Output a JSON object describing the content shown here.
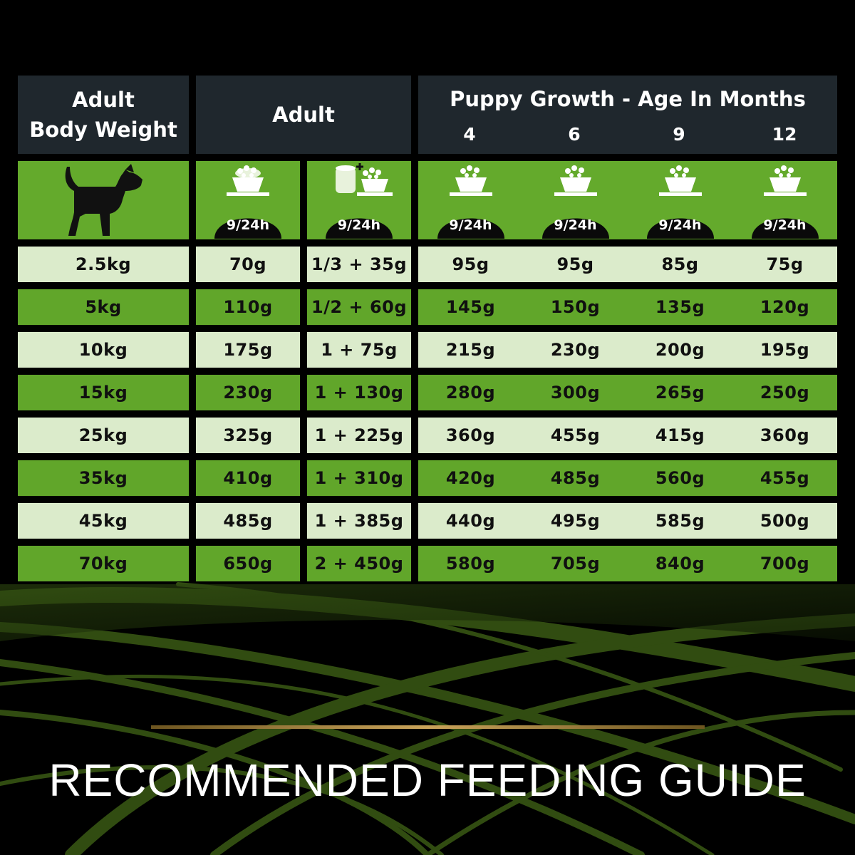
{
  "header": {
    "weight_line1": "Adult",
    "weight_line2": "Body Weight",
    "adult": "Adult",
    "puppy": "Puppy Growth - Age In Months",
    "months": [
      "4",
      "6",
      "9",
      "12"
    ]
  },
  "icon_label": "9/24h",
  "rows": [
    {
      "weight": "2.5kg",
      "adult_dry": "70g",
      "adult_mixed": "1/3 + 35g",
      "m4": "95g",
      "m6": "95g",
      "m9": "85g",
      "m12": "75g"
    },
    {
      "weight": "5kg",
      "adult_dry": "110g",
      "adult_mixed": "1/2 + 60g",
      "m4": "145g",
      "m6": "150g",
      "m9": "135g",
      "m12": "120g"
    },
    {
      "weight": "10kg",
      "adult_dry": "175g",
      "adult_mixed": "1 + 75g",
      "m4": "215g",
      "m6": "230g",
      "m9": "200g",
      "m12": "195g"
    },
    {
      "weight": "15kg",
      "adult_dry": "230g",
      "adult_mixed": "1 + 130g",
      "m4": "280g",
      "m6": "300g",
      "m9": "265g",
      "m12": "250g"
    },
    {
      "weight": "25kg",
      "adult_dry": "325g",
      "adult_mixed": "1 + 225g",
      "m4": "360g",
      "m6": "455g",
      "m9": "415g",
      "m12": "360g"
    },
    {
      "weight": "35kg",
      "adult_dry": "410g",
      "adult_mixed": "1 + 310g",
      "m4": "420g",
      "m6": "485g",
      "m9": "560g",
      "m12": "455g"
    },
    {
      "weight": "45kg",
      "adult_dry": "485g",
      "adult_mixed": "1 + 385g",
      "m4": "440g",
      "m6": "495g",
      "m9": "585g",
      "m12": "500g"
    },
    {
      "weight": "70kg",
      "adult_dry": "650g",
      "adult_mixed": "2 + 450g",
      "m4": "580g",
      "m6": "705g",
      "m9": "840g",
      "m12": "700g"
    }
  ],
  "footer_title": "RECOMMENDED FEEDING GUIDE",
  "colors": {
    "header_bg": "#1f272d",
    "green": "#61a62a",
    "light_green": "#dbebcb",
    "gold": "#c9a35a"
  },
  "icons": [
    "dog-icon",
    "food-bowl-icon",
    "can-plus-bowl-icon"
  ]
}
